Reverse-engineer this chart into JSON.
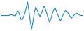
{
  "line_color": "#1a8abf",
  "background_color": "#ffffff",
  "linewidth": 0.8,
  "y_values": [
    0.0,
    0.0,
    0.0,
    0.0,
    0.0,
    0.0,
    0.1,
    0.2,
    0.1,
    0.0,
    -0.1,
    0.5,
    1.0,
    0.3,
    -0.8,
    -1.0,
    -0.3,
    0.5,
    1.8,
    3.0,
    1.0,
    -1.5,
    -3.0,
    -1.2,
    0.8,
    2.0,
    1.2,
    0.4,
    -0.2,
    0.4,
    1.2,
    2.2,
    1.5,
    0.5,
    -0.5,
    -1.5,
    -0.8,
    0.3,
    1.2,
    1.8,
    1.0,
    0.2,
    -0.5,
    -1.2,
    -0.5,
    0.2,
    0.8,
    1.2,
    0.8,
    0.3,
    -0.2,
    -0.6,
    -0.3,
    0.1,
    0.4,
    0.5,
    0.3,
    0.1,
    0.0,
    0.0
  ]
}
